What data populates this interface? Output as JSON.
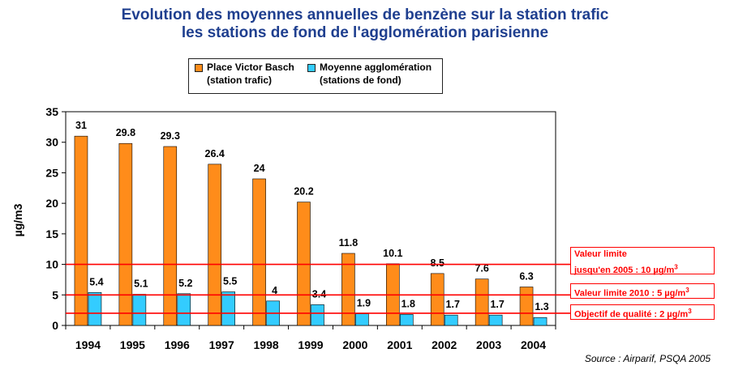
{
  "title_line1": "Evolution des moyennes annuelles de benzène sur la station trafic",
  "title_line2": "les stations de fond de l'agglomération parisienne",
  "source": "Source : Airparif, PSQA 2005",
  "colors": {
    "orange": "#ff8c1a",
    "cyan": "#33ccff",
    "red": "#ff0000",
    "title": "#1f3f8f"
  },
  "limits": {
    "l10_line1": "Valeur limite",
    "l10_line2": "jusqu'en 2005 : 10 µg/m",
    "l10_sup": "3",
    "l5": "Valeur limite 2010 : 5 µg/m",
    "l5_sup": "3",
    "l2": "Objectif de qualité : 2 µg/m",
    "l2_sup": "3"
  },
  "chart_data": {
    "type": "bar",
    "ylabel": "µg/m3",
    "ylim": [
      0,
      35
    ],
    "yticks": [
      0,
      5,
      10,
      15,
      20,
      25,
      30,
      35
    ],
    "categories": [
      "1994",
      "1995",
      "1996",
      "1997",
      "1998",
      "1999",
      "2000",
      "2001",
      "2002",
      "2003",
      "2004"
    ],
    "series": [
      {
        "name_line1": "Place Victor Basch",
        "name_line2": "(station trafic)",
        "color": "#ff8c1a",
        "values": [
          31,
          29.8,
          29.3,
          26.4,
          24,
          20.2,
          11.8,
          10.1,
          8.5,
          7.6,
          6.3
        ],
        "labels": [
          "31",
          "29.8",
          "29.3",
          "26.4",
          "24",
          "20.2",
          "11.8",
          "10.1",
          "8.5",
          "7.6",
          "6.3"
        ]
      },
      {
        "name_line1": "Moyenne agglomération",
        "name_line2": "(stations de fond)",
        "color": "#33ccff",
        "values": [
          5.4,
          5.1,
          5.2,
          5.5,
          4,
          3.4,
          1.9,
          1.8,
          1.7,
          1.7,
          1.3
        ],
        "labels": [
          "5.4",
          "5.1",
          "5.2",
          "5.5",
          "4",
          "3.4",
          "1.9",
          "1.8",
          "1.7",
          "1.7",
          "1.3"
        ]
      }
    ],
    "reference_lines": [
      10,
      5,
      2
    ],
    "grid": false,
    "legend": "top-center"
  }
}
